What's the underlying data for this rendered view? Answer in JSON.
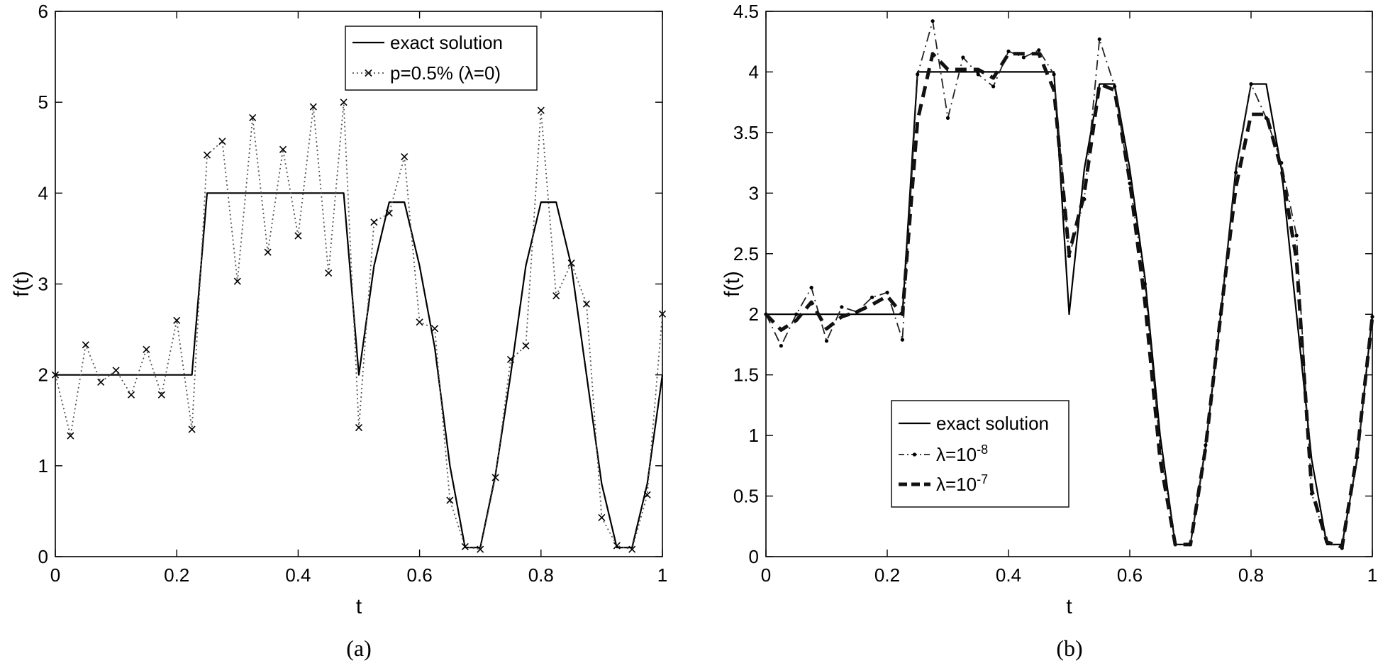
{
  "chart_data": [
    {
      "type": "line",
      "caption": "(a)",
      "xlabel": "t",
      "ylabel": "f(t)",
      "xlim": [
        0,
        1
      ],
      "ylim": [
        0,
        6
      ],
      "xticks": [
        0,
        0.2,
        0.4,
        0.6,
        0.8,
        1
      ],
      "yticks": [
        0,
        1,
        2,
        3,
        4,
        5,
        6
      ],
      "xtick_labels": [
        "0",
        "0.2",
        "0.4",
        "0.6",
        "0.8",
        "1"
      ],
      "ytick_labels": [
        "0",
        "1",
        "2",
        "3",
        "4",
        "5",
        "6"
      ],
      "legend_position": "top-center",
      "series": [
        {
          "name": "exact solution",
          "style": "solid",
          "x": [
            0,
            0.225,
            0.25,
            0.475,
            0.5,
            0.525,
            0.55,
            0.575,
            0.6,
            0.625,
            0.65,
            0.675,
            0.7,
            0.725,
            0.75,
            0.775,
            0.8,
            0.825,
            0.85,
            0.875,
            0.9,
            0.925,
            0.95,
            0.975,
            1
          ],
          "y": [
            2,
            2,
            4,
            4,
            2,
            3.2,
            3.9,
            3.9,
            3.2,
            2.3,
            1.0,
            0.1,
            0.1,
            0.9,
            2.0,
            3.2,
            3.9,
            3.9,
            3.2,
            2.0,
            0.8,
            0.1,
            0.1,
            0.8,
            2.0
          ]
        },
        {
          "name": "p=0.5% (λ=0)",
          "style": "dotted-x",
          "x": [
            0,
            0.025,
            0.05,
            0.075,
            0.1,
            0.125,
            0.15,
            0.175,
            0.2,
            0.225,
            0.25,
            0.275,
            0.3,
            0.325,
            0.35,
            0.375,
            0.4,
            0.425,
            0.45,
            0.475,
            0.5,
            0.525,
            0.55,
            0.575,
            0.6,
            0.625,
            0.65,
            0.675,
            0.7,
            0.725,
            0.75,
            0.775,
            0.8,
            0.825,
            0.85,
            0.875,
            0.9,
            0.925,
            0.95,
            0.975,
            1
          ],
          "y": [
            2.0,
            1.33,
            2.33,
            1.92,
            2.05,
            1.78,
            2.28,
            1.78,
            2.6,
            1.4,
            4.42,
            4.57,
            3.03,
            4.83,
            3.35,
            4.48,
            3.53,
            4.95,
            3.12,
            5.0,
            1.42,
            3.68,
            3.78,
            4.4,
            2.58,
            2.51,
            0.62,
            0.11,
            0.08,
            0.87,
            2.17,
            2.32,
            4.91,
            2.87,
            3.23,
            2.78,
            0.43,
            0.12,
            0.08,
            0.68,
            2.67
          ]
        }
      ]
    },
    {
      "type": "line",
      "caption": "(b)",
      "xlabel": "t",
      "ylabel": "f(t)",
      "xlim": [
        0,
        1
      ],
      "ylim": [
        0,
        4.5
      ],
      "xticks": [
        0,
        0.2,
        0.4,
        0.6,
        0.8,
        1
      ],
      "yticks": [
        0,
        0.5,
        1,
        1.5,
        2,
        2.5,
        3,
        3.5,
        4,
        4.5
      ],
      "xtick_labels": [
        "0",
        "0.2",
        "0.4",
        "0.6",
        "0.8",
        "1"
      ],
      "ytick_labels": [
        "0",
        "0.5",
        "1",
        "1.5",
        "2",
        "2.5",
        "3",
        "3.5",
        "4",
        "4.5"
      ],
      "legend_position": "bottom-left",
      "series": [
        {
          "name": "exact solution",
          "style": "solid",
          "x": [
            0,
            0.225,
            0.25,
            0.475,
            0.5,
            0.525,
            0.55,
            0.575,
            0.6,
            0.625,
            0.65,
            0.675,
            0.7,
            0.725,
            0.75,
            0.775,
            0.8,
            0.825,
            0.85,
            0.875,
            0.9,
            0.925,
            0.95,
            0.975,
            1
          ],
          "y": [
            2,
            2,
            4,
            4,
            2,
            3.2,
            3.9,
            3.9,
            3.2,
            2.3,
            1.0,
            0.1,
            0.1,
            0.9,
            2.0,
            3.2,
            3.9,
            3.9,
            3.2,
            2.0,
            0.8,
            0.1,
            0.1,
            0.8,
            2.0
          ]
        },
        {
          "name": "λ=10",
          "name_sup": "-8",
          "style": "dash-dot-marker",
          "x": [
            0,
            0.025,
            0.05,
            0.075,
            0.1,
            0.125,
            0.15,
            0.175,
            0.2,
            0.225,
            0.25,
            0.275,
            0.3,
            0.325,
            0.35,
            0.375,
            0.4,
            0.425,
            0.45,
            0.475,
            0.5,
            0.525,
            0.55,
            0.575,
            0.6,
            0.625,
            0.65,
            0.675,
            0.7,
            0.725,
            0.75,
            0.775,
            0.8,
            0.825,
            0.85,
            0.875,
            0.9,
            0.925,
            0.95,
            0.975,
            1
          ],
          "y": [
            2.0,
            1.74,
            2.0,
            2.22,
            1.78,
            2.06,
            2.02,
            2.14,
            2.18,
            1.79,
            3.98,
            4.42,
            3.62,
            4.12,
            3.98,
            3.88,
            4.17,
            4.12,
            4.18,
            3.98,
            2.48,
            2.95,
            4.27,
            3.88,
            3.08,
            2.25,
            0.9,
            0.1,
            0.1,
            0.92,
            2.0,
            3.17,
            3.9,
            3.62,
            3.25,
            2.65,
            0.52,
            0.12,
            0.07,
            0.82,
            1.98
          ]
        },
        {
          "name": "λ=10",
          "name_sup": "-7",
          "style": "thick-dashed",
          "x": [
            0,
            0.025,
            0.05,
            0.075,
            0.1,
            0.125,
            0.15,
            0.175,
            0.2,
            0.225,
            0.25,
            0.275,
            0.3,
            0.325,
            0.35,
            0.375,
            0.4,
            0.425,
            0.45,
            0.475,
            0.5,
            0.525,
            0.55,
            0.575,
            0.6,
            0.625,
            0.65,
            0.675,
            0.7,
            0.725,
            0.75,
            0.775,
            0.8,
            0.825,
            0.85,
            0.875,
            0.9,
            0.925,
            0.95,
            0.975,
            1
          ],
          "y": [
            2.0,
            1.87,
            1.95,
            2.1,
            1.88,
            1.98,
            2.02,
            2.08,
            2.15,
            2.0,
            3.6,
            4.15,
            4.02,
            4.02,
            4.02,
            3.95,
            4.15,
            4.15,
            4.15,
            3.85,
            2.5,
            3.0,
            3.9,
            3.85,
            3.1,
            2.1,
            0.8,
            0.1,
            0.1,
            0.9,
            2.0,
            3.05,
            3.65,
            3.65,
            3.2,
            2.45,
            0.55,
            0.12,
            0.08,
            0.85,
            1.98
          ]
        }
      ]
    }
  ]
}
